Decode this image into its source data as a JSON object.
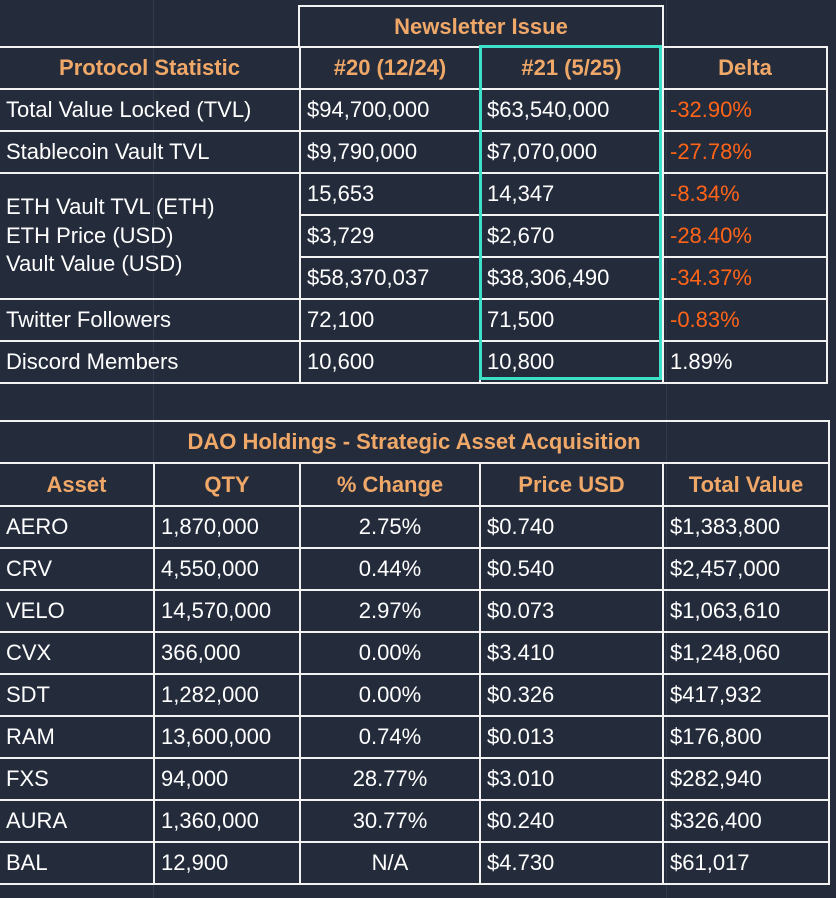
{
  "protocol_table": {
    "group_header": "Newsletter Issue",
    "columns": [
      "Protocol Statistic",
      "#20 (12/24)",
      "#21 (5/25)",
      "Delta"
    ],
    "rows": [
      {
        "label": "Total Value Locked (TVL)",
        "v20": "$94,700,000",
        "v21": "$63,540,000",
        "delta": "-32.90%",
        "neg": true
      },
      {
        "label": "Stablecoin Vault TVL",
        "v20": "$9,790,000",
        "v21": "$7,070,000",
        "delta": "-27.78%",
        "neg": true
      }
    ],
    "eth_labels": [
      "ETH Vault TVL (ETH)",
      "ETH Price (USD)",
      "Vault Value (USD)"
    ],
    "eth_rows": [
      {
        "v20": "15,653",
        "v21": "14,347",
        "delta": "-8.34%",
        "neg": true
      },
      {
        "v20": "$3,729",
        "v21": "$2,670",
        "delta": "-28.40%",
        "neg": true
      },
      {
        "v20": "$58,370,037",
        "v21": "$38,306,490",
        "delta": "-34.37%",
        "neg": true
      }
    ],
    "rows_bottom": [
      {
        "label": "Twitter Followers",
        "v20": "72,100",
        "v21": "71,500",
        "delta": "-0.83%",
        "neg": true
      },
      {
        "label": "Discord Members",
        "v20": "10,600",
        "v21": "10,800",
        "delta": "1.89%",
        "neg": false
      }
    ]
  },
  "holdings_table": {
    "title": "DAO Holdings - Strategic Asset Acquisition",
    "columns": [
      "Asset",
      "QTY",
      "% Change",
      "Price USD",
      "Total Value"
    ],
    "rows": [
      [
        "AERO",
        "1,870,000",
        "2.75%",
        "$0.740",
        "$1,383,800"
      ],
      [
        "CRV",
        "4,550,000",
        "0.44%",
        "$0.540",
        "$2,457,000"
      ],
      [
        "VELO",
        "14,570,000",
        "2.97%",
        "$0.073",
        "$1,063,610"
      ],
      [
        "CVX",
        "366,000",
        "0.00%",
        "$3.410",
        "$1,248,060"
      ],
      [
        "SDT",
        "1,282,000",
        "0.00%",
        "$0.326",
        "$417,932"
      ],
      [
        "RAM",
        "13,600,000",
        "0.74%",
        "$0.013",
        "$176,800"
      ],
      [
        "FXS",
        "94,000",
        "28.77%",
        "$3.010",
        "$282,940"
      ],
      [
        "AURA",
        "1,360,000",
        "30.77%",
        "$0.240",
        "$326,400"
      ],
      [
        "BAL",
        "12,900",
        "N/A",
        "$4.730",
        "$61,017"
      ]
    ]
  },
  "colors": {
    "background": "#242b3b",
    "header_text": "#f0a868",
    "negative": "#ff6418",
    "highlight": "#3de0c8"
  }
}
